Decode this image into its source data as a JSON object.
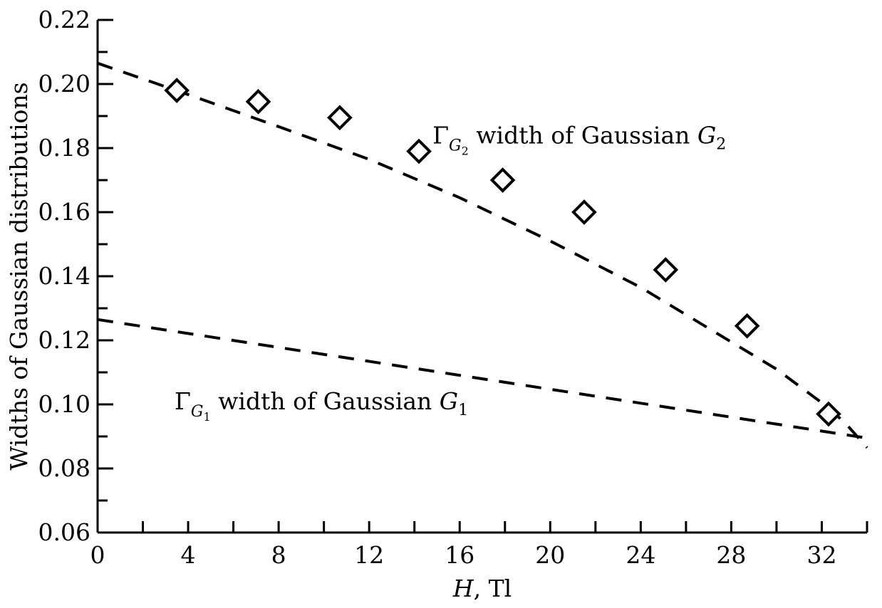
{
  "chart_data": {
    "type": "scatter",
    "xlabel_var": "H",
    "xlabel_unit": ", Tl",
    "ylabel": "Widths of Gaussian distributions",
    "xlim": [
      0,
      34
    ],
    "ylim": [
      0.06,
      0.22
    ],
    "x_ticks": [
      0,
      4,
      8,
      12,
      16,
      20,
      24,
      28,
      32
    ],
    "x_tick_labels": [
      "0",
      "4",
      "8",
      "12",
      "16",
      "20",
      "24",
      "28",
      "32"
    ],
    "y_ticks": [
      0.06,
      0.08,
      0.1,
      0.12,
      0.14,
      0.16,
      0.18,
      0.2,
      0.22
    ],
    "y_tick_labels": [
      "0.06",
      "0.08",
      "0.10",
      "0.12",
      "0.14",
      "0.16",
      "0.18",
      "0.20",
      "0.22"
    ],
    "x_minor_step": 2,
    "y_minor_step": 0.01,
    "grid": false,
    "series": [
      {
        "kind": "markers",
        "marker": "diamond",
        "x": [
          3.5,
          7.1,
          10.7,
          14.2,
          17.9,
          21.5,
          25.1,
          28.7,
          32.3
        ],
        "y": [
          0.198,
          0.1945,
          0.1895,
          0.179,
          0.17,
          0.16,
          0.142,
          0.1245,
          0.097
        ]
      },
      {
        "kind": "dashed-line",
        "x": [
          0,
          4,
          8,
          12,
          16,
          20,
          24,
          28,
          30,
          32,
          33,
          34
        ],
        "y": [
          0.2065,
          0.1967,
          0.1867,
          0.1765,
          0.1645,
          0.151,
          0.1365,
          0.1195,
          0.111,
          0.1005,
          0.0945,
          0.0865
        ]
      },
      {
        "kind": "dashed-line",
        "x": [
          0,
          34
        ],
        "y": [
          0.1265,
          0.0895
        ]
      }
    ],
    "annotations": [
      {
        "main": "Γ",
        "sub": "G",
        "subsub": "2",
        "rest": " width of Gaussian ",
        "var": "G",
        "varsub": "2",
        "x": 14.8,
        "y": 0.1815
      },
      {
        "main": "Γ",
        "sub": "G",
        "subsub": "1",
        "rest": " width of Gaussian ",
        "var": "G",
        "varsub": "1",
        "x": 3.4,
        "y": 0.0985
      }
    ]
  }
}
